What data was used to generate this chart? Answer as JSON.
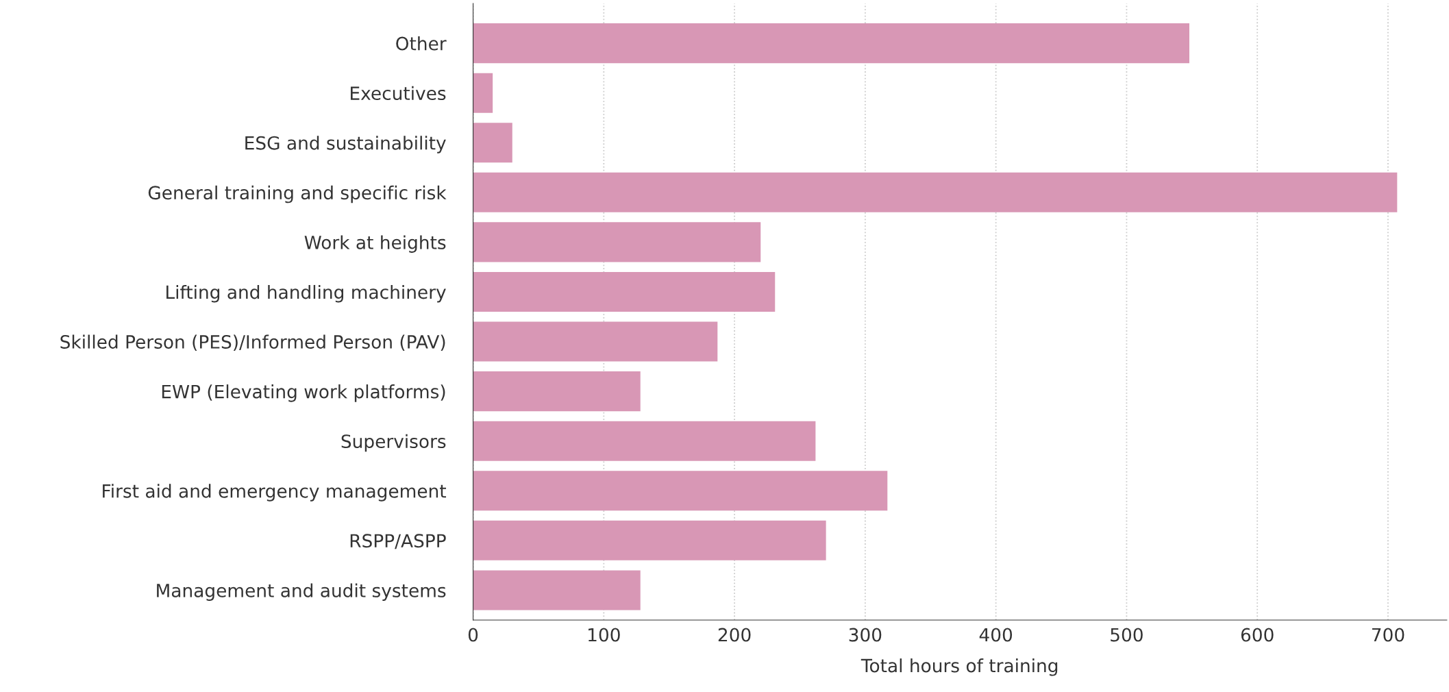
{
  "chart_data": {
    "type": "bar",
    "orientation": "horizontal",
    "xlabel": "Total hours of training",
    "categories": [
      "Other",
      "Executives",
      "ESG and sustainability",
      "General training and specific risk",
      "Work at heights",
      "Lifting and handling machinery",
      "Skilled Person (PES)/Informed Person (PAV)",
      "EWP (Elevating work platforms)",
      "Supervisors",
      "First aid and emergency management",
      "RSPP/ASPP",
      "Management and audit systems"
    ],
    "values": [
      548,
      15,
      30,
      707,
      220,
      231,
      187,
      128,
      262,
      317,
      270,
      128
    ],
    "color": "#d897b5",
    "xlim": [
      0,
      745
    ],
    "xticks": [
      0,
      100,
      200,
      300,
      400,
      500,
      600,
      700
    ],
    "grid": "x"
  }
}
